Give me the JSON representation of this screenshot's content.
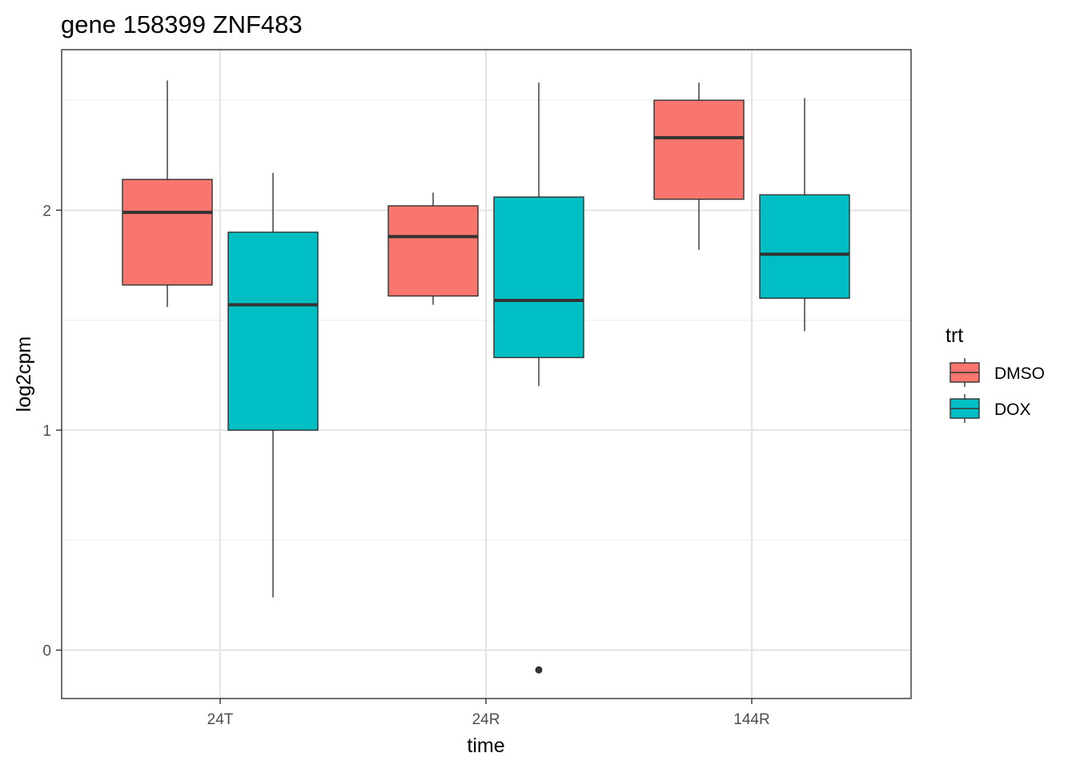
{
  "chart_data": {
    "type": "boxplot",
    "title": "gene 158399 ZNF483",
    "xlabel": "time",
    "ylabel": "log2cpm",
    "categories": [
      "24T",
      "24R",
      "144R"
    ],
    "y_ticks": [
      0,
      1,
      2
    ],
    "y_tick_labels": [
      "0",
      "1",
      "2"
    ],
    "ylim": [
      -0.22,
      2.73
    ],
    "grid": true,
    "legend": {
      "title": "trt",
      "position": "right",
      "entries": [
        "DMSO",
        "DOX"
      ]
    },
    "series": [
      {
        "name": "DMSO",
        "color": "#F8766D",
        "boxes": [
          {
            "category": "24T",
            "whisker_low": 1.56,
            "q1": 1.66,
            "median": 1.99,
            "q3": 2.14,
            "whisker_high": 2.59,
            "outliers": []
          },
          {
            "category": "24R",
            "whisker_low": 1.57,
            "q1": 1.61,
            "median": 1.88,
            "q3": 2.02,
            "whisker_high": 2.08,
            "outliers": []
          },
          {
            "category": "144R",
            "whisker_low": 1.82,
            "q1": 2.05,
            "median": 2.33,
            "q3": 2.5,
            "whisker_high": 2.58,
            "outliers": []
          }
        ]
      },
      {
        "name": "DOX",
        "color": "#00BFC4",
        "boxes": [
          {
            "category": "24T",
            "whisker_low": 0.24,
            "q1": 1.0,
            "median": 1.57,
            "q3": 1.9,
            "whisker_high": 2.17,
            "outliers": []
          },
          {
            "category": "24R",
            "whisker_low": 1.2,
            "q1": 1.33,
            "median": 1.59,
            "q3": 2.06,
            "whisker_high": 2.58,
            "outliers": [
              -0.09
            ]
          },
          {
            "category": "144R",
            "whisker_low": 1.45,
            "q1": 1.6,
            "median": 1.8,
            "q3": 2.07,
            "whisker_high": 2.51,
            "outliers": []
          }
        ]
      }
    ]
  }
}
